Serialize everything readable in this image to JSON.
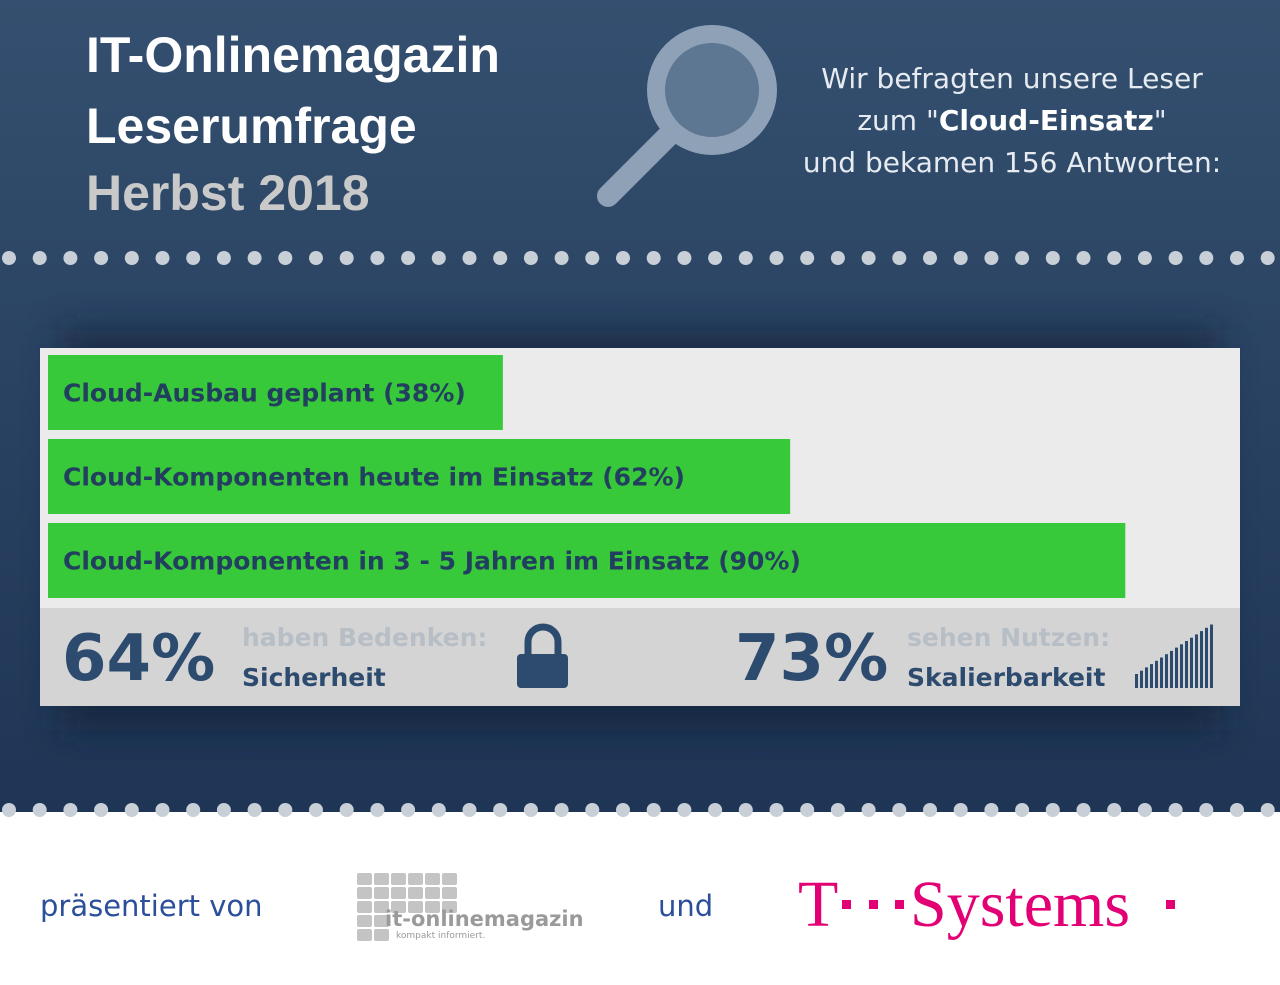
{
  "header": {
    "title_lines": [
      "IT-Onlinemagazin",
      "Leserumfrage"
    ],
    "season": "Herbst 2018"
  },
  "intro": {
    "line1": "Wir befragten unsere Leser",
    "line2_start": "zum \"",
    "line2_bold": "Cloud-Einsatz",
    "line2_end": "\"",
    "line3": "und bekamen 156 Antworten:"
  },
  "chart_data": {
    "type": "bar",
    "orientation": "horizontal",
    "categories": [
      "Cloud-Ausbau geplant",
      "Cloud-Komponenten heute im Einsatz",
      "Cloud-Komponenten in 3 - 5 Jahren im Einsatz"
    ],
    "values": [
      38,
      62,
      90
    ],
    "value_labels": [
      "(38%)",
      "(62%)",
      "(90%)"
    ],
    "color": "#38c93a",
    "xlim": [
      0,
      100
    ]
  },
  "stats": [
    {
      "figure": "64%",
      "caption": "haben Bedenken:",
      "topic": "Sicherheit"
    },
    {
      "figure": "73%",
      "caption": "sehen Nutzen:",
      "topic": "Skalierbarkeit"
    }
  ],
  "footer": {
    "presented_by": "präsentiert von",
    "logo1_name": "it-onlinemagazin",
    "logo1_tagline": "kompakt informiert.",
    "and": "und",
    "logo2_letter": "T",
    "logo2_name": "Systems"
  }
}
